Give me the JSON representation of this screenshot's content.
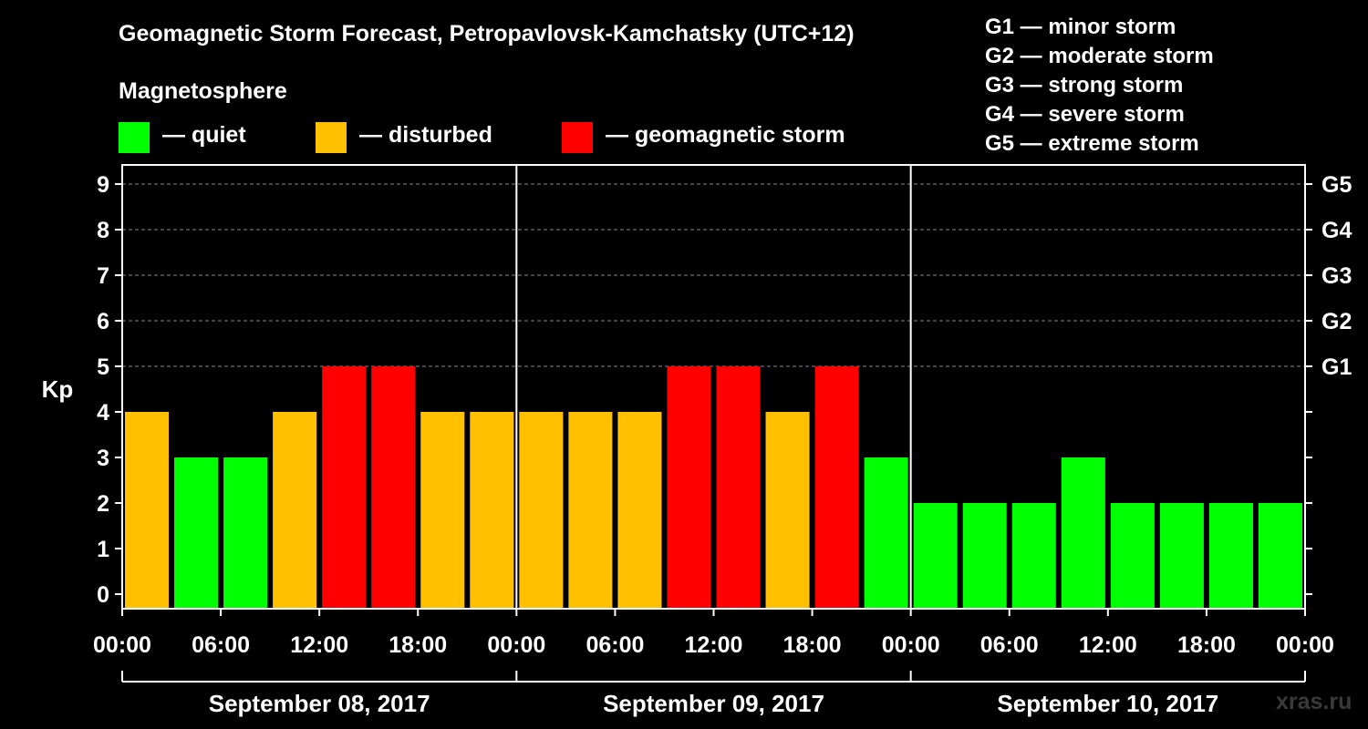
{
  "title": "Geomagnetic Storm Forecast, Petropavlovsk-Kamchatsky (UTC+12)",
  "legend": {
    "heading": "Magnetosphere",
    "items": [
      {
        "label": "— quiet",
        "color": "#00ff00"
      },
      {
        "label": "— disturbed",
        "color": "#ffc000"
      },
      {
        "label": "— geomagnetic storm",
        "color": "#ff0000"
      }
    ],
    "g_scale": [
      "G1 — minor storm",
      "G2 — moderate storm",
      "G3 — strong storm",
      "G4 — severe storm",
      "G5 — extreme storm"
    ]
  },
  "watermark": "xras.ru",
  "chart_data": {
    "type": "bar",
    "ylabel": "Kp",
    "ylim": [
      0,
      9
    ],
    "y_ticks": [
      0,
      1,
      2,
      3,
      4,
      5,
      6,
      7,
      8,
      9
    ],
    "right_axis_labels": [
      {
        "kp": 5,
        "label": "G1"
      },
      {
        "kp": 6,
        "label": "G2"
      },
      {
        "kp": 7,
        "label": "G3"
      },
      {
        "kp": 8,
        "label": "G4"
      },
      {
        "kp": 9,
        "label": "G5"
      }
    ],
    "x_tick_labels": [
      "00:00",
      "06:00",
      "12:00",
      "18:00",
      "00:00",
      "06:00",
      "12:00",
      "18:00",
      "00:00",
      "06:00",
      "12:00",
      "18:00",
      "00:00"
    ],
    "days": [
      "September 08, 2017",
      "September 09, 2017",
      "September 10, 2017"
    ],
    "interval_hours": 3,
    "values": [
      4,
      3,
      3,
      4,
      5,
      5,
      4,
      4,
      4,
      4,
      4,
      5,
      5,
      4,
      5,
      3,
      2,
      2,
      2,
      3,
      2,
      2,
      2,
      2
    ],
    "colors": [
      "#ffc000",
      "#00ff00",
      "#00ff00",
      "#ffc000",
      "#ff0000",
      "#ff0000",
      "#ffc000",
      "#ffc000",
      "#ffc000",
      "#ffc000",
      "#ffc000",
      "#ff0000",
      "#ff0000",
      "#ffc000",
      "#ff0000",
      "#00ff00",
      "#00ff00",
      "#00ff00",
      "#00ff00",
      "#00ff00",
      "#00ff00",
      "#00ff00",
      "#00ff00",
      "#00ff00"
    ],
    "grid": "dashed horizontal at Kp 5–9"
  }
}
